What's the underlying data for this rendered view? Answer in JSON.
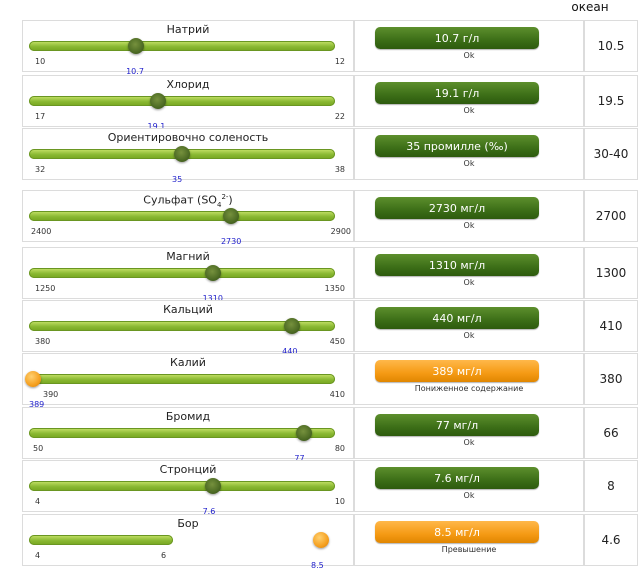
{
  "header": {
    "ocean_label": "океан"
  },
  "rows": [
    {
      "label": "Натрий",
      "min": "10",
      "max": "12",
      "value": "10.7",
      "reading": "10.7 г/л",
      "status": "Ok",
      "ocean": "10.5",
      "level": 0.35,
      "alert": false
    },
    {
      "label": "Хлорид",
      "min": "17",
      "max": "22",
      "value": "19.1",
      "reading": "19.1 г/л",
      "status": "Ok",
      "ocean": "19.5",
      "level": 0.42,
      "alert": false
    },
    {
      "label": "Ориентировочно соленость",
      "min": "32",
      "max": "38",
      "value": "35",
      "reading": "35 промилле (‰)",
      "status": "Ok",
      "ocean": "30-40",
      "level": 0.5,
      "alert": false
    },
    {
      "label_prefix": "Сульфат (SO",
      "label_sub": "4",
      "label_sup": "2-",
      "label_suffix": ")",
      "min": "2400",
      "max": "2900",
      "value": "2730",
      "reading": "2730 мг/л",
      "status": "Ok",
      "ocean": "2700",
      "level": 0.66,
      "alert": false
    },
    {
      "label": "Магний",
      "min": "1250",
      "max": "1350",
      "value": "1310",
      "reading": "1310 мг/л",
      "status": "Ok",
      "ocean": "1300",
      "level": 0.6,
      "alert": false
    },
    {
      "label": "Кальций",
      "min": "380",
      "max": "450",
      "value": "440",
      "reading": "440 мг/л",
      "status": "Ok",
      "ocean": "410",
      "level": 0.86,
      "alert": false
    },
    {
      "label": "Калий",
      "min": "390",
      "max": "410",
      "value": "389",
      "reading": "389 мг/л",
      "status": "Пониженное содержание",
      "ocean": "380",
      "level": 0.0,
      "alert": true
    },
    {
      "label": "Бромид",
      "min": "50",
      "max": "80",
      "value": "77",
      "reading": "77 мг/л",
      "status": "Ok",
      "ocean": "66",
      "level": 0.9,
      "alert": false
    },
    {
      "label": "Стронций",
      "min": "4",
      "max": "10",
      "value": "7.6",
      "reading": "7.6 мг/л",
      "status": "Ok",
      "ocean": "8",
      "level": 0.6,
      "alert": false
    },
    {
      "label": "Бор",
      "min": "4",
      "max": "6",
      "value": "8.5",
      "reading": "8.5 мг/л",
      "status": "Превышение",
      "ocean": "4.6",
      "level": 1.0,
      "alert": true
    }
  ],
  "colors": {
    "ok_badge": "#3c6e17",
    "alert_badge": "#f59a14",
    "slider_green": "#8ab933",
    "value_text": "#2222cc"
  }
}
